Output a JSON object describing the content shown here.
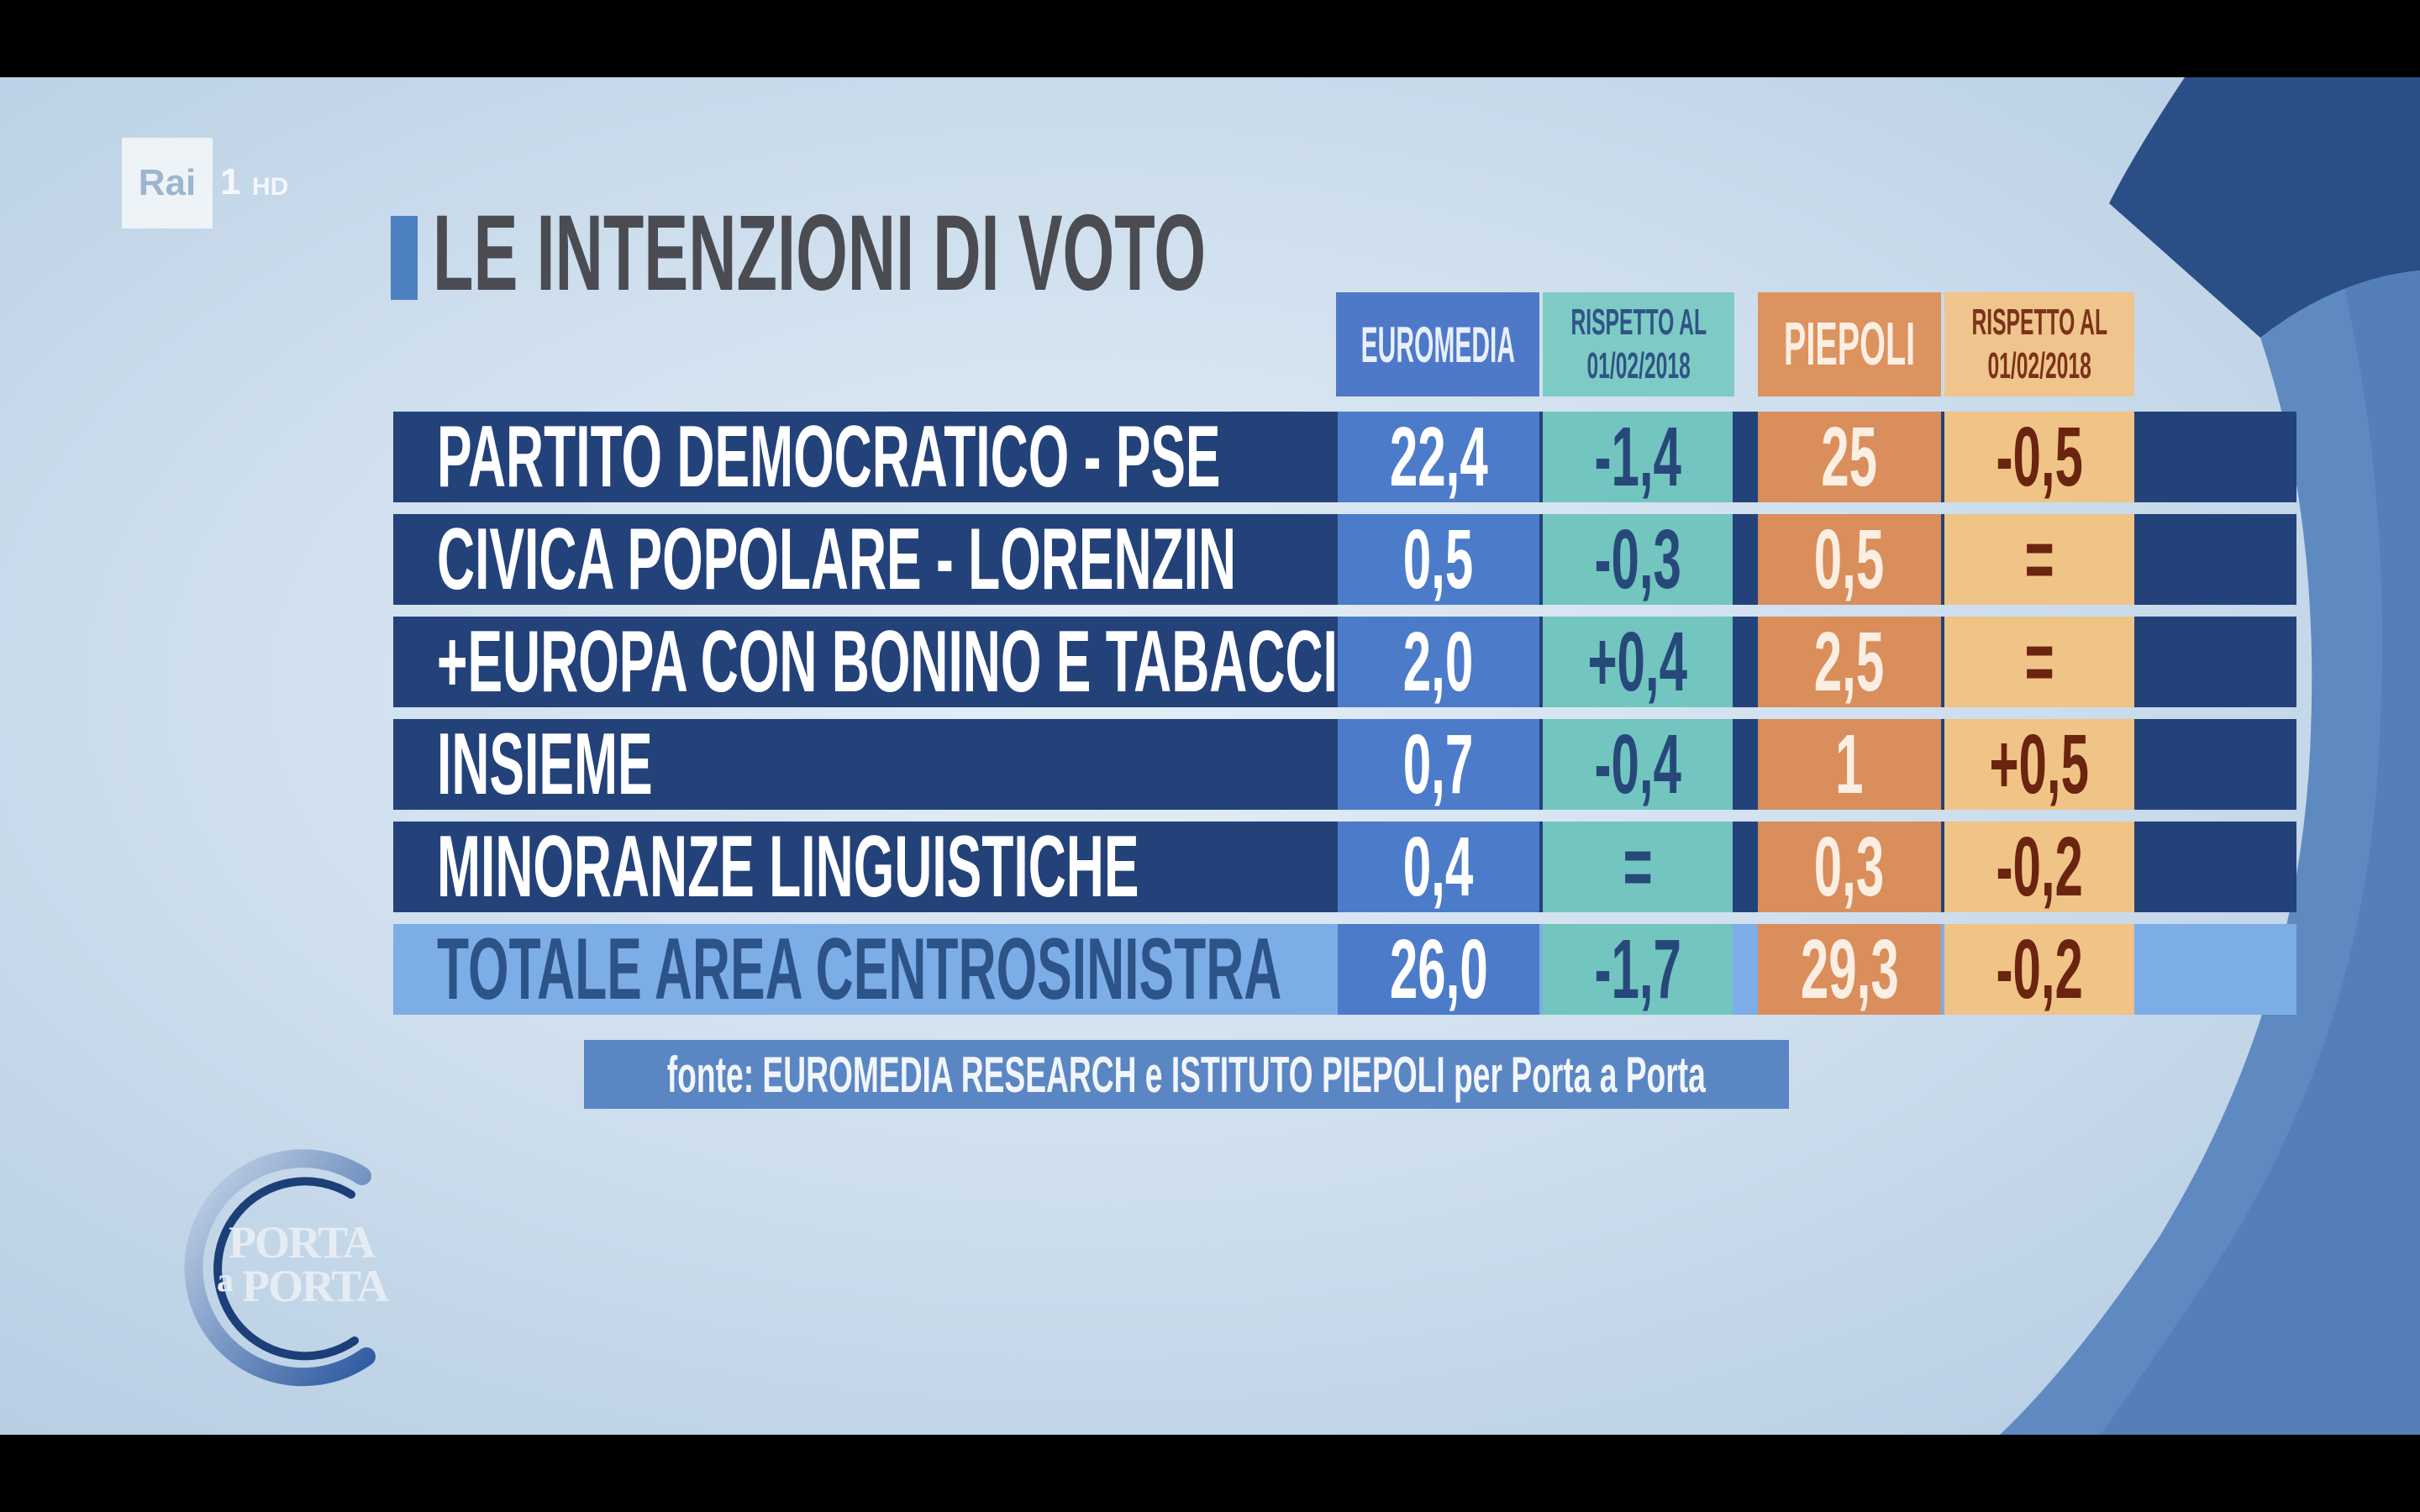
{
  "channel": {
    "network": "Rai",
    "number": "1",
    "hd": "HD"
  },
  "title": "LE INTENZIONI DI VOTO",
  "columns": {
    "euromedia": "EUROMEDIA",
    "euromedia_delta": [
      "RISPETTO AL",
      "01/02/2018"
    ],
    "piepoli": "PIEPOLI",
    "piepoli_delta": [
      "RISPETTO AL",
      "01/02/2018"
    ]
  },
  "rows": [
    {
      "label": "PARTITO DEMOCRATICO - PSE",
      "euromedia": "22,4",
      "euromedia_delta": "-1,4",
      "piepoli": "25",
      "piepoli_delta": "-0,5"
    },
    {
      "label": "CIVICA POPOLARE - LORENZIN",
      "euromedia": "0,5",
      "euromedia_delta": "-0,3",
      "piepoli": "0,5",
      "piepoli_delta": "="
    },
    {
      "label": "+EUROPA CON BONINO E TABACCI",
      "euromedia": "2,0",
      "euromedia_delta": "+0,4",
      "piepoli": "2,5",
      "piepoli_delta": "="
    },
    {
      "label": "INSIEME",
      "euromedia": "0,7",
      "euromedia_delta": "-0,4",
      "piepoli": "1",
      "piepoli_delta": "+0,5"
    },
    {
      "label": "MINORANZE LINGUISTICHE",
      "euromedia": "0,4",
      "euromedia_delta": "=",
      "piepoli": "0,3",
      "piepoli_delta": "-0,2"
    },
    {
      "label": "TOTALE AREA CENTROSINISTRA",
      "euromedia": "26,0",
      "euromedia_delta": "-1,7",
      "piepoli": "29,3",
      "piepoli_delta": "-0,2",
      "total": true
    }
  ],
  "source": "fonte: EUROMEDIA RESEARCH e ISTITUTO PIEPOLI per Porta a Porta",
  "show_logo": {
    "line1": "PORTA",
    "line2_a": "a",
    "line2_b": "PORTA"
  },
  "colors": {
    "row_bar": "#24427a",
    "total_bar": "#7dade6",
    "euromedia": "#4c7cc9",
    "euromedia_delta": "#73c5c0",
    "piepoli": "#d98e5c",
    "piepoli_delta": "#f0c387"
  },
  "chart_data": {
    "type": "table",
    "title": "LE INTENZIONI DI VOTO",
    "columns": [
      "",
      "EUROMEDIA",
      "RISPETTO AL 01/02/2018",
      "PIEPOLI",
      "RISPETTO AL 01/02/2018"
    ],
    "rows": [
      [
        "PARTITO DEMOCRATICO - PSE",
        22.4,
        -1.4,
        25,
        -0.5
      ],
      [
        "CIVICA POPOLARE - LORENZIN",
        0.5,
        -0.3,
        0.5,
        "="
      ],
      [
        "+EUROPA CON BONINO E TABACCI",
        2.0,
        0.4,
        2.5,
        "="
      ],
      [
        "INSIEME",
        0.7,
        -0.4,
        1,
        0.5
      ],
      [
        "MINORANZE LINGUISTICHE",
        0.4,
        "=",
        0.3,
        -0.2
      ],
      [
        "TOTALE AREA CENTROSINISTRA",
        26.0,
        -1.7,
        29.3,
        -0.2
      ]
    ]
  }
}
